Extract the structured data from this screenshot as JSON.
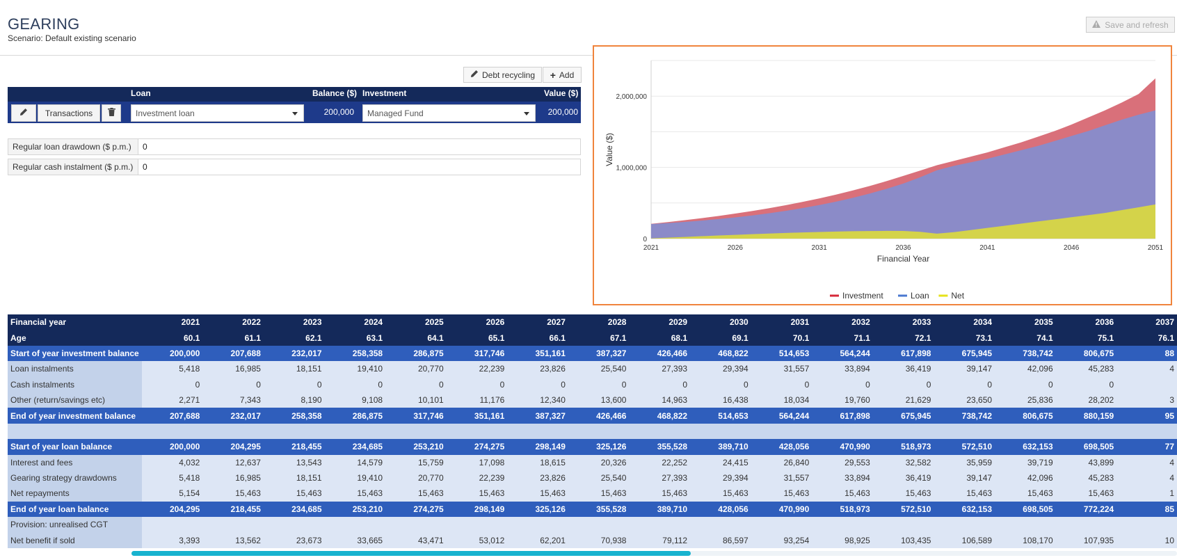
{
  "header": {
    "title": "GEARING",
    "subtitle": "Scenario: Default existing scenario",
    "save_label": "Save and refresh"
  },
  "toolbar": {
    "debt_recycling_label": "Debt recycling",
    "add_label": "Add"
  },
  "loan_table": {
    "headers": {
      "loan": "Loan",
      "balance": "Balance ($)",
      "investment": "Investment",
      "value": "Value ($)"
    },
    "row": {
      "transactions_label": "Transactions",
      "loan_select": "Investment loan",
      "balance": "200,000",
      "investment_select": "Managed Fund",
      "value": "200,000"
    }
  },
  "fields": [
    {
      "label": "Regular loan drawdown ($ p.m.)",
      "value": "0"
    },
    {
      "label": "Regular cash instalment ($ p.m.)",
      "value": "0"
    }
  ],
  "chart_data": {
    "type": "area",
    "x": [
      2021,
      2022,
      2023,
      2024,
      2025,
      2026,
      2027,
      2028,
      2029,
      2030,
      2031,
      2032,
      2033,
      2034,
      2035,
      2036,
      2037,
      2038,
      2039,
      2040,
      2041,
      2042,
      2043,
      2044,
      2045,
      2046,
      2047,
      2048,
      2049,
      2050,
      2051
    ],
    "series": [
      {
        "name": "Investment",
        "color": "#d9707a",
        "values": [
          207688,
          232017,
          258358,
          286875,
          317746,
          351161,
          387327,
          426466,
          468822,
          514653,
          564244,
          617898,
          675945,
          738742,
          806675,
          880159,
          955000,
          1030000,
          1090000,
          1150000,
          1210000,
          1280000,
          1350000,
          1430000,
          1510000,
          1600000,
          1700000,
          1800000,
          1910000,
          2030000,
          2250000
        ]
      },
      {
        "name": "Loan",
        "color": "#8b8bc8",
        "values": [
          204295,
          218455,
          234685,
          253210,
          274275,
          298149,
          325126,
          355528,
          389710,
          428056,
          470990,
          518973,
          572510,
          632153,
          698505,
          772224,
          860000,
          960000,
          1020000,
          1070000,
          1120000,
          1180000,
          1240000,
          1300000,
          1370000,
          1440000,
          1510000,
          1590000,
          1670000,
          1740000,
          1800000
        ]
      },
      {
        "name": "Net",
        "color": "#d4d34a",
        "values": [
          3393,
          13562,
          23673,
          33665,
          43471,
          53012,
          62201,
          70938,
          79112,
          86597,
          93254,
          98925,
          103435,
          106589,
          108170,
          107935,
          95000,
          70000,
          90000,
          120000,
          150000,
          180000,
          210000,
          240000,
          270000,
          300000,
          330000,
          360000,
          400000,
          440000,
          480000
        ]
      }
    ],
    "xlabel": "Financial Year",
    "ylabel": "Value ($)",
    "x_ticks": [
      "2021",
      "2026",
      "2031",
      "2036",
      "2041",
      "2046",
      "2051"
    ],
    "y_ticks": [
      "0",
      "1,000,000",
      "2,000,000"
    ],
    "ylim": [
      0,
      2500000
    ],
    "legend": [
      "Investment",
      "Loan",
      "Net"
    ],
    "legend_colors": [
      "#d62839",
      "#4a78d0",
      "#e6e21a"
    ],
    "legend_position": "bottom"
  },
  "grid": {
    "years": [
      "2021",
      "2022",
      "2023",
      "2024",
      "2025",
      "2026",
      "2027",
      "2028",
      "2029",
      "2030",
      "2031",
      "2032",
      "2033",
      "2034",
      "2035",
      "2036",
      "2037"
    ],
    "rows": [
      {
        "label": "Financial year",
        "style": "dark",
        "values": [
          "2021",
          "2022",
          "2023",
          "2024",
          "2025",
          "2026",
          "2027",
          "2028",
          "2029",
          "2030",
          "2031",
          "2032",
          "2033",
          "2034",
          "2035",
          "2036",
          "2037"
        ]
      },
      {
        "label": "Age",
        "style": "dark",
        "values": [
          "60.1",
          "61.1",
          "62.1",
          "63.1",
          "64.1",
          "65.1",
          "66.1",
          "67.1",
          "68.1",
          "69.1",
          "70.1",
          "71.1",
          "72.1",
          "73.1",
          "74.1",
          "75.1",
          "76.1"
        ]
      },
      {
        "label": "Start of year investment balance",
        "style": "blue",
        "values": [
          "200,000",
          "207,688",
          "232,017",
          "258,358",
          "286,875",
          "317,746",
          "351,161",
          "387,327",
          "426,466",
          "468,822",
          "514,653",
          "564,244",
          "617,898",
          "675,945",
          "738,742",
          "806,675",
          "88"
        ]
      },
      {
        "label": "Loan instalments",
        "style": "light",
        "values": [
          "5,418",
          "16,985",
          "18,151",
          "19,410",
          "20,770",
          "22,239",
          "23,826",
          "25,540",
          "27,393",
          "29,394",
          "31,557",
          "33,894",
          "36,419",
          "39,147",
          "42,096",
          "45,283",
          "4"
        ]
      },
      {
        "label": "Cash instalments",
        "style": "light",
        "values": [
          "0",
          "0",
          "0",
          "0",
          "0",
          "0",
          "0",
          "0",
          "0",
          "0",
          "0",
          "0",
          "0",
          "0",
          "0",
          "0",
          ""
        ]
      },
      {
        "label": "Other (return/savings etc)",
        "style": "light",
        "values": [
          "2,271",
          "7,343",
          "8,190",
          "9,108",
          "10,101",
          "11,176",
          "12,340",
          "13,600",
          "14,963",
          "16,438",
          "18,034",
          "19,760",
          "21,629",
          "23,650",
          "25,836",
          "28,202",
          "3"
        ]
      },
      {
        "label": "End of year investment balance",
        "style": "blue",
        "values": [
          "207,688",
          "232,017",
          "258,358",
          "286,875",
          "317,746",
          "351,161",
          "387,327",
          "426,466",
          "468,822",
          "514,653",
          "564,244",
          "617,898",
          "675,945",
          "738,742",
          "806,675",
          "880,159",
          "95"
        ]
      },
      {
        "label": "",
        "style": "spacer",
        "values": [
          "",
          "",
          "",
          "",
          "",
          "",
          "",
          "",
          "",
          "",
          "",
          "",
          "",
          "",
          "",
          "",
          ""
        ]
      },
      {
        "label": "Start of year loan balance",
        "style": "blue",
        "values": [
          "200,000",
          "204,295",
          "218,455",
          "234,685",
          "253,210",
          "274,275",
          "298,149",
          "325,126",
          "355,528",
          "389,710",
          "428,056",
          "470,990",
          "518,973",
          "572,510",
          "632,153",
          "698,505",
          "77"
        ]
      },
      {
        "label": "Interest and fees",
        "style": "light",
        "values": [
          "4,032",
          "12,637",
          "13,543",
          "14,579",
          "15,759",
          "17,098",
          "18,615",
          "20,326",
          "22,252",
          "24,415",
          "26,840",
          "29,553",
          "32,582",
          "35,959",
          "39,719",
          "43,899",
          "4"
        ]
      },
      {
        "label": "Gearing strategy drawdowns",
        "style": "light",
        "values": [
          "5,418",
          "16,985",
          "18,151",
          "19,410",
          "20,770",
          "22,239",
          "23,826",
          "25,540",
          "27,393",
          "29,394",
          "31,557",
          "33,894",
          "36,419",
          "39,147",
          "42,096",
          "45,283",
          "4"
        ]
      },
      {
        "label": "Net repayments",
        "style": "light",
        "values": [
          "5,154",
          "15,463",
          "15,463",
          "15,463",
          "15,463",
          "15,463",
          "15,463",
          "15,463",
          "15,463",
          "15,463",
          "15,463",
          "15,463",
          "15,463",
          "15,463",
          "15,463",
          "15,463",
          "1"
        ]
      },
      {
        "label": "End of year loan balance",
        "style": "blue",
        "values": [
          "204,295",
          "218,455",
          "234,685",
          "253,210",
          "274,275",
          "298,149",
          "325,126",
          "355,528",
          "389,710",
          "428,056",
          "470,990",
          "518,973",
          "572,510",
          "632,153",
          "698,505",
          "772,224",
          "85"
        ]
      },
      {
        "label": "Provision: unrealised CGT",
        "style": "light",
        "values": [
          "",
          "",
          "",
          "",
          "",
          "",
          "",
          "",
          "",
          "",
          "",
          "",
          "",
          "",
          "",
          "",
          ""
        ]
      },
      {
        "label": "Net benefit if sold",
        "style": "light",
        "values": [
          "3,393",
          "13,562",
          "23,673",
          "33,665",
          "43,471",
          "53,012",
          "62,201",
          "70,938",
          "79,112",
          "86,597",
          "93,254",
          "98,925",
          "103,435",
          "106,589",
          "108,170",
          "107,935",
          "10"
        ]
      }
    ]
  }
}
